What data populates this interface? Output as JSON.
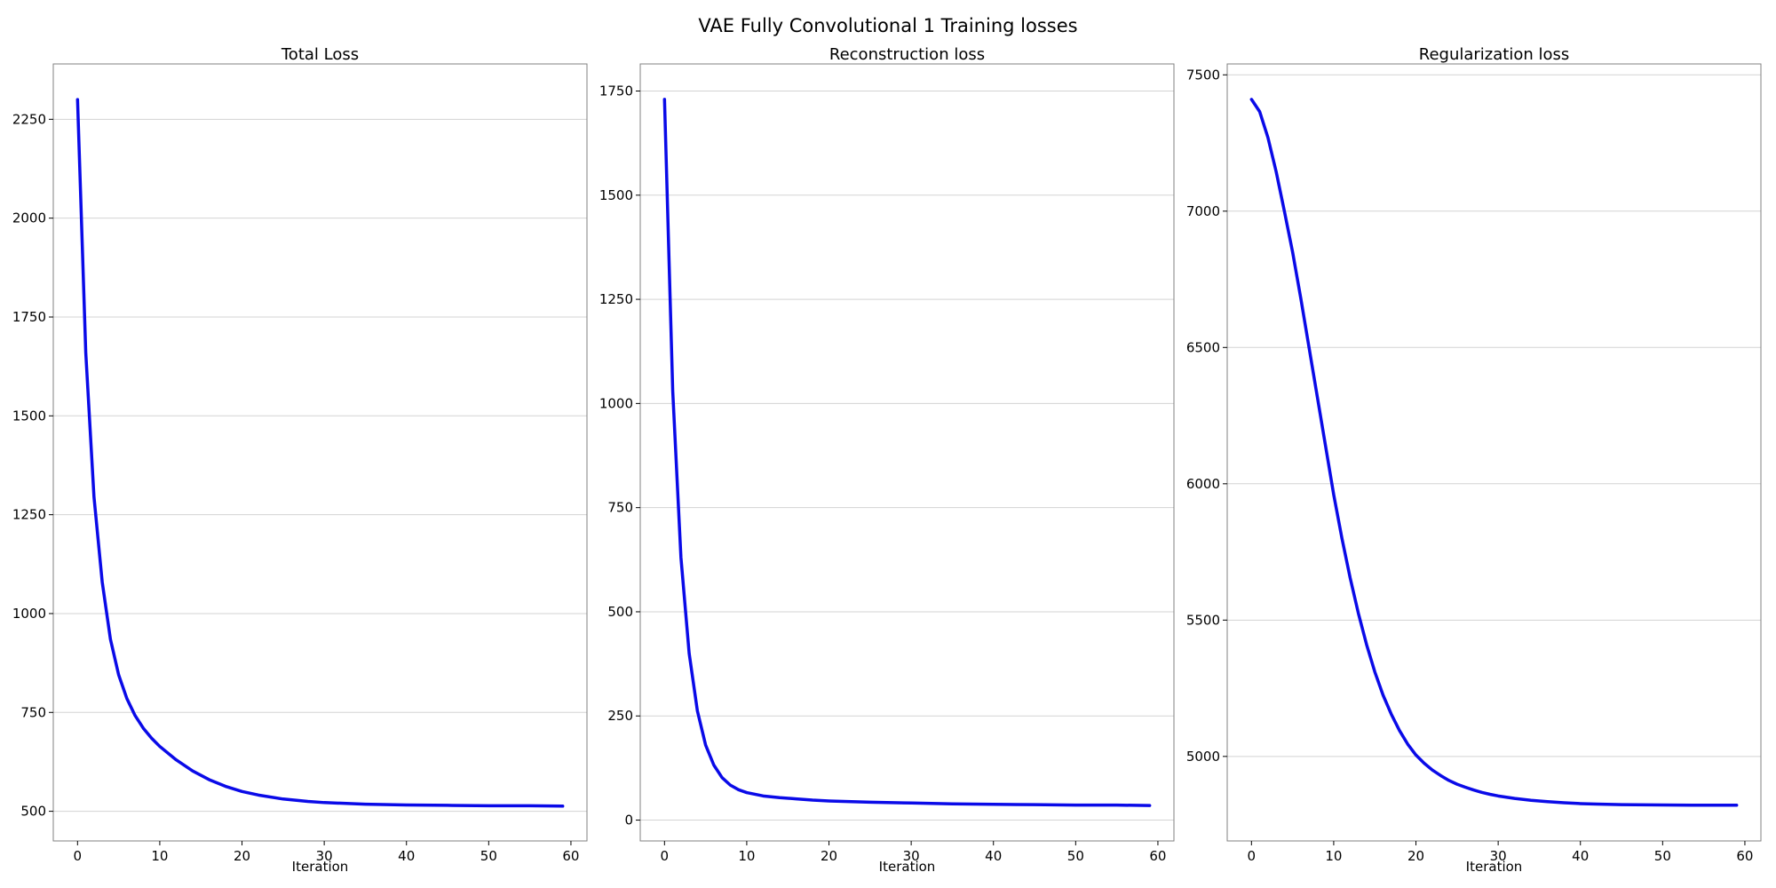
{
  "figure": {
    "title": "VAE Fully Convolutional 1 Training losses"
  },
  "chart_data": [
    {
      "type": "line",
      "title": "Total Loss",
      "xlabel": "Iteration",
      "ylabel": "",
      "xlim": [
        -2.95,
        61.95
      ],
      "ylim": [
        425,
        2390
      ],
      "xticks": [
        0,
        10,
        20,
        30,
        40,
        50,
        60
      ],
      "yticks": [
        500,
        750,
        1000,
        1250,
        1500,
        1750,
        2000,
        2250
      ],
      "grid": "y",
      "color": "#0a0ae8",
      "x": [
        0,
        1,
        2,
        3,
        4,
        5,
        6,
        7,
        8,
        9,
        10,
        12,
        14,
        16,
        18,
        20,
        22,
        25,
        28,
        30,
        35,
        40,
        45,
        50,
        55,
        59
      ],
      "y": [
        2300,
        1660,
        1295,
        1080,
        935,
        845,
        785,
        742,
        710,
        685,
        664,
        630,
        602,
        580,
        563,
        550,
        541,
        531,
        525,
        522,
        518,
        516,
        515,
        514,
        514,
        513
      ]
    },
    {
      "type": "line",
      "title": "Reconstruction loss",
      "xlabel": "Iteration",
      "ylabel": "",
      "xlim": [
        -2.95,
        61.95
      ],
      "ylim": [
        -50,
        1815
      ],
      "xticks": [
        0,
        10,
        20,
        30,
        40,
        50,
        60
      ],
      "yticks": [
        0,
        250,
        500,
        750,
        1000,
        1250,
        1500,
        1750
      ],
      "grid": "y",
      "color": "#0a0ae8",
      "x": [
        0,
        1,
        2,
        3,
        4,
        5,
        6,
        7,
        8,
        9,
        10,
        11,
        12,
        14,
        16,
        18,
        20,
        25,
        30,
        35,
        40,
        45,
        50,
        55,
        59
      ],
      "y": [
        1730,
        1030,
        630,
        400,
        262,
        180,
        132,
        102,
        84,
        73,
        66,
        62,
        58,
        54,
        51,
        48,
        46,
        43,
        41,
        39,
        38,
        37,
        36,
        36,
        35
      ]
    },
    {
      "type": "line",
      "title": "Regularization loss",
      "xlabel": "Iteration",
      "ylabel": "",
      "xlim": [
        -2.95,
        61.95
      ],
      "ylim": [
        4690,
        7540
      ],
      "xticks": [
        0,
        10,
        20,
        30,
        40,
        50,
        60
      ],
      "yticks": [
        5000,
        5500,
        6000,
        6500,
        7000,
        7500
      ],
      "grid": "y",
      "color": "#0a0ae8",
      "x": [
        0,
        1,
        2,
        3,
        4,
        5,
        6,
        7,
        8,
        9,
        10,
        11,
        12,
        13,
        14,
        15,
        16,
        17,
        18,
        19,
        20,
        21,
        22,
        23,
        24,
        25,
        26,
        27,
        28,
        29,
        30,
        32,
        34,
        36,
        38,
        40,
        42,
        45,
        50,
        55,
        59
      ],
      "y": [
        7410,
        7365,
        7270,
        7145,
        7000,
        6850,
        6680,
        6500,
        6320,
        6140,
        5960,
        5800,
        5655,
        5525,
        5410,
        5310,
        5225,
        5155,
        5095,
        5045,
        5005,
        4975,
        4950,
        4930,
        4912,
        4898,
        4887,
        4877,
        4868,
        4861,
        4855,
        4846,
        4839,
        4834,
        4830,
        4827,
        4825,
        4823,
        4822,
        4821,
        4821
      ]
    }
  ]
}
